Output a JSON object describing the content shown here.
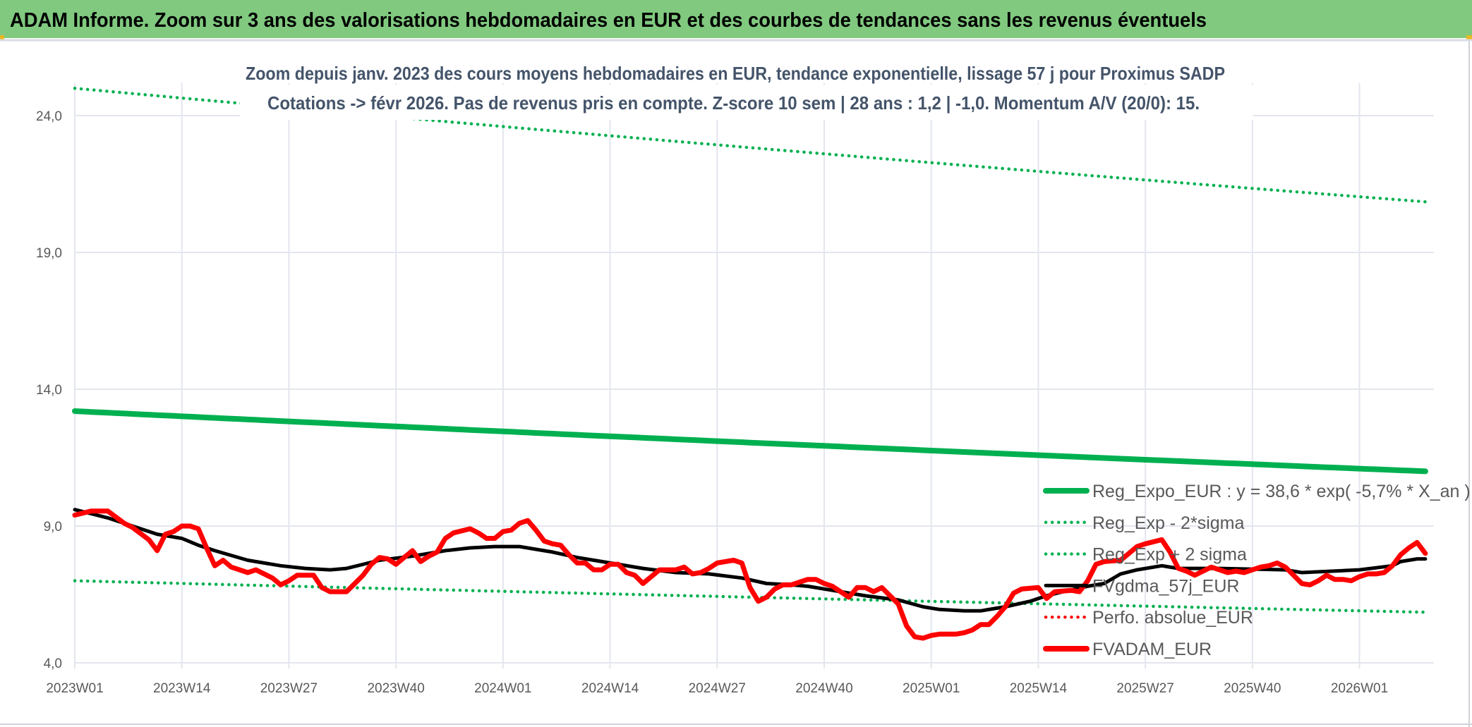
{
  "header": {
    "title": "ADAM Informe. Zoom sur 3 ans des valorisations hebdomadaires en EUR et des courbes de tendances sans les revenus éventuels"
  },
  "colors": {
    "header_bg": "#80c97f",
    "title_text": "#000000",
    "subtitle_text": "#44546a",
    "grid": "#e3e6ee",
    "reg_expo": "#00b050",
    "sigma": "#00b050",
    "mma": "#000000",
    "price": "#ff0000",
    "perfo": "#ff0000"
  },
  "chart_data": {
    "type": "line",
    "title": "Zoom depuis janv. 2023 des cours moyens hebdomadaires en EUR, tendance exponentielle, lissage 57 j pour Proximus SADP",
    "subtitle": "Cotations -> févr 2026. Pas de revenus pris en compte. Z-score 10 sem | 28 ans : 1,2 | -1,0. Momentum A/V (20/0): 15.",
    "x_ticks": [
      "2023W01",
      "2023W14",
      "2023W27",
      "2023W40",
      "2024W01",
      "2024W14",
      "2024W27",
      "2024W40",
      "2025W01",
      "2025W14",
      "2025W27",
      "2025W40",
      "2026W01"
    ],
    "y_ticks": [
      "4,0",
      "9,0",
      "14,0",
      "19,0",
      "24,0"
    ],
    "ylim": [
      4,
      25.2
    ],
    "xlim": [
      "2023W01",
      "2026W09"
    ],
    "grid": true,
    "legend_placement": "bottom-right",
    "series": [
      {
        "name": "Reg_Expo_EUR : y = 38,6 * exp( -5,7% *  X_an )",
        "style": "solid-thick",
        "color": "#00b050",
        "points": [
          [
            "2023W01",
            13.2
          ],
          [
            "2026W09",
            11.0
          ]
        ]
      },
      {
        "name": "Reg_Exp - 2*sigma",
        "style": "dotted",
        "color": "#00b050",
        "points": [
          [
            "2023W01",
            7.0
          ],
          [
            "2026W09",
            5.85
          ]
        ]
      },
      {
        "name": "Reg_Exp + 2 sigma",
        "style": "dotted",
        "color": "#00b050",
        "points": [
          [
            "2023W01",
            25.0
          ],
          [
            "2026W09",
            20.85
          ]
        ]
      },
      {
        "name": "FVgdma_57j_EUR",
        "style": "solid",
        "color": "#000000",
        "points": [
          [
            "2023W01",
            9.6
          ],
          [
            "2023W05",
            9.3
          ],
          [
            "2023W08",
            9.0
          ],
          [
            "2023W11",
            8.7
          ],
          [
            "2023W14",
            8.55
          ],
          [
            "2023W16",
            8.3
          ],
          [
            "2023W18",
            8.1
          ],
          [
            "2023W22",
            7.75
          ],
          [
            "2023W26",
            7.55
          ],
          [
            "2023W29",
            7.45
          ],
          [
            "2023W32",
            7.4
          ],
          [
            "2023W34",
            7.45
          ],
          [
            "2023W38",
            7.75
          ],
          [
            "2023W42",
            7.9
          ],
          [
            "2023W45",
            8.05
          ],
          [
            "2023W46",
            8.1
          ],
          [
            "2023W49",
            8.2
          ],
          [
            "2023W52",
            8.25
          ],
          [
            "2024W03",
            8.25
          ],
          [
            "2024W05",
            8.15
          ],
          [
            "2024W07",
            8.05
          ],
          [
            "2024W10",
            7.85
          ],
          [
            "2024W13",
            7.7
          ],
          [
            "2024W18",
            7.45
          ],
          [
            "2024W22",
            7.3
          ],
          [
            "2024W26",
            7.25
          ],
          [
            "2024W30",
            7.1
          ],
          [
            "2024W33",
            6.9
          ],
          [
            "2024W36",
            6.85
          ],
          [
            "2024W38",
            6.8
          ],
          [
            "2024W41",
            6.65
          ],
          [
            "2024W45",
            6.45
          ],
          [
            "2024W49",
            6.3
          ],
          [
            "2024W52",
            6.05
          ],
          [
            "2025W02",
            5.95
          ],
          [
            "2025W05",
            5.9
          ],
          [
            "2025W07",
            5.9
          ],
          [
            "2025W10",
            6.05
          ],
          [
            "2025W13",
            6.25
          ],
          [
            "2025W15",
            6.45
          ],
          [
            "2025W17",
            6.6
          ],
          [
            "2025W20",
            6.8
          ],
          [
            "2025W22",
            6.9
          ],
          [
            "2025W24",
            7.25
          ],
          [
            "2025W26",
            7.4
          ],
          [
            "2025W29",
            7.55
          ],
          [
            "2025W31",
            7.45
          ],
          [
            "2025W36",
            7.45
          ],
          [
            "2025W44",
            7.4
          ],
          [
            "2025W46",
            7.3
          ],
          [
            "2026W01",
            7.4
          ],
          [
            "2026W05",
            7.55
          ],
          [
            "2026W06",
            7.7
          ],
          [
            "2026W08",
            7.8
          ],
          [
            "2026W09",
            7.8
          ]
        ]
      },
      {
        "name": "Perfo. absolue_EUR",
        "style": "dotted",
        "color": "#ff0000",
        "points": []
      },
      {
        "name": "FVADAM_EUR",
        "style": "solid-thick",
        "color": "#ff0000",
        "points": [
          [
            "2023W01",
            9.4
          ],
          [
            "2023W03",
            9.55
          ],
          [
            "2023W05",
            9.55
          ],
          [
            "2023W07",
            9.1
          ],
          [
            "2023W08",
            8.95
          ],
          [
            "2023W10",
            8.5
          ],
          [
            "2023W11",
            8.1
          ],
          [
            "2023W12",
            8.7
          ],
          [
            "2023W13",
            8.8
          ],
          [
            "2023W14",
            9.0
          ],
          [
            "2023W15",
            9.0
          ],
          [
            "2023W16",
            8.9
          ],
          [
            "2023W17",
            8.2
          ],
          [
            "2023W18",
            7.55
          ],
          [
            "2023W19",
            7.75
          ],
          [
            "2023W20",
            7.5
          ],
          [
            "2023W21",
            7.4
          ],
          [
            "2023W22",
            7.3
          ],
          [
            "2023W23",
            7.4
          ],
          [
            "2023W25",
            7.1
          ],
          [
            "2023W26",
            6.85
          ],
          [
            "2023W27",
            7.0
          ],
          [
            "2023W28",
            7.2
          ],
          [
            "2023W30",
            7.2
          ],
          [
            "2023W31",
            6.75
          ],
          [
            "2023W32",
            6.6
          ],
          [
            "2023W34",
            6.6
          ],
          [
            "2023W36",
            7.2
          ],
          [
            "2023W37",
            7.6
          ],
          [
            "2023W38",
            7.85
          ],
          [
            "2023W39",
            7.8
          ],
          [
            "2023W40",
            7.6
          ],
          [
            "2023W41",
            7.85
          ],
          [
            "2023W42",
            8.1
          ],
          [
            "2023W43",
            7.7
          ],
          [
            "2023W44",
            7.9
          ],
          [
            "2023W45",
            8.05
          ],
          [
            "2023W46",
            8.55
          ],
          [
            "2023W47",
            8.75
          ],
          [
            "2023W49",
            8.9
          ],
          [
            "2023W50",
            8.75
          ],
          [
            "2023W51",
            8.55
          ],
          [
            "2023W52",
            8.55
          ],
          [
            "2024W01",
            8.8
          ],
          [
            "2024W02",
            8.85
          ],
          [
            "2024W03",
            9.1
          ],
          [
            "2024W04",
            9.2
          ],
          [
            "2024W05",
            8.85
          ],
          [
            "2024W06",
            8.45
          ],
          [
            "2024W07",
            8.35
          ],
          [
            "2024W08",
            8.3
          ],
          [
            "2024W09",
            7.95
          ],
          [
            "2024W10",
            7.65
          ],
          [
            "2024W11",
            7.65
          ],
          [
            "2024W12",
            7.4
          ],
          [
            "2024W13",
            7.4
          ],
          [
            "2024W14",
            7.6
          ],
          [
            "2024W15",
            7.6
          ],
          [
            "2024W16",
            7.3
          ],
          [
            "2024W17",
            7.2
          ],
          [
            "2024W18",
            6.9
          ],
          [
            "2024W19",
            7.15
          ],
          [
            "2024W20",
            7.4
          ],
          [
            "2024W22",
            7.4
          ],
          [
            "2024W23",
            7.5
          ],
          [
            "2024W24",
            7.25
          ],
          [
            "2024W25",
            7.3
          ],
          [
            "2024W26",
            7.45
          ],
          [
            "2024W27",
            7.65
          ],
          [
            "2024W28",
            7.7
          ],
          [
            "2024W29",
            7.75
          ],
          [
            "2024W30",
            7.65
          ],
          [
            "2024W31",
            6.75
          ],
          [
            "2024W32",
            6.25
          ],
          [
            "2024W33",
            6.4
          ],
          [
            "2024W34",
            6.7
          ],
          [
            "2024W35",
            6.85
          ],
          [
            "2024W36",
            6.85
          ],
          [
            "2024W38",
            7.05
          ],
          [
            "2024W39",
            7.05
          ],
          [
            "2024W40",
            6.9
          ],
          [
            "2024W41",
            6.8
          ],
          [
            "2024W43",
            6.4
          ],
          [
            "2024W44",
            6.75
          ],
          [
            "2024W45",
            6.75
          ],
          [
            "2024W46",
            6.6
          ],
          [
            "2024W47",
            6.75
          ],
          [
            "2024W49",
            6.15
          ],
          [
            "2024W50",
            5.35
          ],
          [
            "2024W51",
            4.95
          ],
          [
            "2024W52",
            4.9
          ],
          [
            "2025W01",
            5.0
          ],
          [
            "2025W02",
            5.05
          ],
          [
            "2025W04",
            5.05
          ],
          [
            "2025W05",
            5.1
          ],
          [
            "2025W06",
            5.2
          ],
          [
            "2025W07",
            5.4
          ],
          [
            "2025W08",
            5.4
          ],
          [
            "2025W09",
            5.7
          ],
          [
            "2025W10",
            6.05
          ],
          [
            "2025W11",
            6.55
          ],
          [
            "2025W12",
            6.7
          ],
          [
            "2025W14",
            6.75
          ],
          [
            "2025W15",
            6.35
          ],
          [
            "2025W16",
            6.6
          ],
          [
            "2025W18",
            6.65
          ],
          [
            "2025W19",
            6.6
          ],
          [
            "2025W20",
            7.0
          ],
          [
            "2025W21",
            7.6
          ],
          [
            "2025W22",
            7.7
          ],
          [
            "2025W24",
            7.75
          ],
          [
            "2025W25",
            8.0
          ],
          [
            "2025W26",
            8.25
          ],
          [
            "2025W27",
            8.35
          ],
          [
            "2025W29",
            8.5
          ],
          [
            "2025W30",
            8.05
          ],
          [
            "2025W31",
            7.45
          ],
          [
            "2025W32",
            7.35
          ],
          [
            "2025W33",
            7.2
          ],
          [
            "2025W35",
            7.5
          ],
          [
            "2025W37",
            7.3
          ],
          [
            "2025W38",
            7.35
          ],
          [
            "2025W39",
            7.3
          ],
          [
            "2025W41",
            7.5
          ],
          [
            "2025W42",
            7.55
          ],
          [
            "2025W43",
            7.65
          ],
          [
            "2025W44",
            7.5
          ],
          [
            "2025W45",
            7.2
          ],
          [
            "2025W46",
            6.9
          ],
          [
            "2025W47",
            6.85
          ],
          [
            "2025W48",
            7.0
          ],
          [
            "2025W49",
            7.2
          ],
          [
            "2025W50",
            7.05
          ],
          [
            "2025W51",
            7.05
          ],
          [
            "2025W52",
            7.0
          ],
          [
            "2026W01",
            7.15
          ],
          [
            "2026W02",
            7.25
          ],
          [
            "2026W03",
            7.25
          ],
          [
            "2026W04",
            7.3
          ],
          [
            "2026W05",
            7.55
          ],
          [
            "2026W06",
            7.95
          ],
          [
            "2026W07",
            8.2
          ],
          [
            "2026W08",
            8.4
          ],
          [
            "2026W09",
            8.0
          ]
        ]
      }
    ]
  }
}
